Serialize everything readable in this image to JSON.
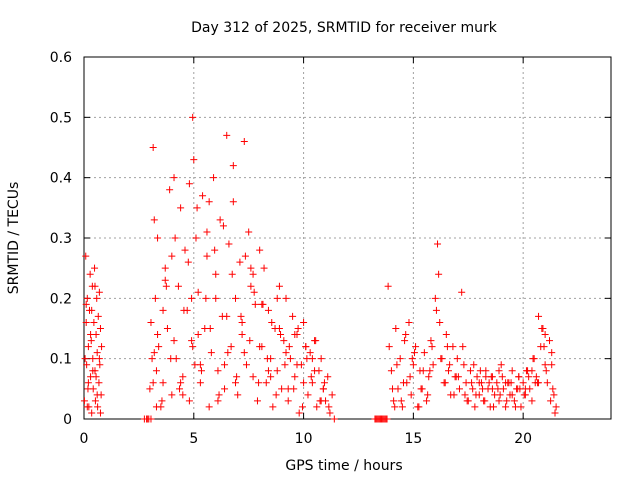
{
  "chart_data": {
    "type": "scatter",
    "title": "Day 312 of 2025, SRMTID for receiver murk",
    "xlabel": "GPS time / hours",
    "ylabel": "SRMTID / TECUs",
    "xlim": [
      0,
      24
    ],
    "ylim": [
      0,
      0.6
    ],
    "x_ticks": [
      0,
      5,
      10,
      15,
      20
    ],
    "y_ticks": [
      0,
      0.1,
      0.2,
      0.3,
      0.4,
      0.5,
      0.6
    ],
    "x_tick_labels": [
      "0",
      "5",
      "10",
      "15",
      "20"
    ],
    "y_tick_labels": [
      "0",
      "0.1",
      "0.2",
      "0.3",
      "0.4",
      "0.5",
      "0.6"
    ],
    "grid": true,
    "marker": "+",
    "color": "#ff0000",
    "series": [
      {
        "x": [
          0.02,
          0.05,
          0.08,
          0.1,
          0.12,
          0.15,
          0.18,
          0.2,
          0.22,
          0.25,
          0.28,
          0.3,
          0.33,
          0.35,
          0.38,
          0.4,
          0.42,
          0.45,
          0.48,
          0.5,
          0.52,
          0.55,
          0.58,
          0.6,
          0.62,
          0.65,
          0.68,
          0.7,
          0.72,
          0.75,
          0.78,
          0.8,
          0.1,
          0.2,
          0.3,
          0.4,
          0.5,
          0.6,
          0.7,
          0.15,
          0.35,
          0.55,
          0.75,
          2.9,
          3.0,
          3.05,
          3.1,
          3.15,
          3.2,
          3.25,
          3.3,
          3.35,
          3.4,
          3.5,
          3.6,
          3.7,
          3.8,
          3.9,
          4.0,
          4.1,
          4.2,
          4.3,
          4.4,
          4.5,
          4.6,
          4.7,
          4.8,
          4.9,
          4.95,
          5.0,
          5.05,
          5.1,
          5.2,
          5.3,
          5.4,
          5.5,
          5.6,
          5.7,
          5.8,
          5.9,
          6.0,
          6.1,
          6.2,
          6.3,
          6.4,
          6.5,
          6.6,
          6.7,
          6.8,
          6.9,
          7.0,
          7.1,
          7.2,
          7.3,
          7.4,
          7.5,
          7.6,
          7.7,
          7.8,
          7.9,
          8.0,
          8.1,
          8.2,
          8.3,
          8.4,
          8.5,
          8.6,
          8.7,
          8.8,
          8.9,
          9.0,
          9.1,
          9.2,
          9.3,
          9.4,
          9.5,
          9.6,
          9.7,
          9.8,
          9.9,
          10.0,
          10.1,
          10.2,
          10.3,
          10.4,
          10.5,
          10.6,
          10.7,
          10.8,
          10.9,
          11.0,
          11.1,
          11.2,
          11.3,
          11.4,
          3.15,
          3.35,
          3.55,
          3.75,
          3.95,
          4.15,
          4.35,
          4.55,
          4.75,
          4.95,
          5.15,
          5.35,
          5.55,
          5.75,
          5.95,
          6.15,
          6.35,
          6.55,
          6.75,
          6.95,
          7.15,
          7.35,
          7.55,
          7.75,
          7.95,
          8.15,
          8.35,
          8.55,
          8.75,
          8.95,
          9.15,
          9.35,
          9.55,
          9.75,
          9.95,
          10.15,
          10.35,
          10.55,
          10.75,
          10.95,
          11.15,
          3.2,
          3.6,
          4.0,
          4.4,
          4.8,
          5.2,
          5.6,
          6.0,
          6.4,
          6.8,
          7.2,
          7.6,
          8.0,
          8.4,
          8.8,
          9.2,
          9.6,
          10.0,
          10.4,
          10.8,
          3.3,
          3.7,
          4.1,
          4.5,
          4.9,
          5.3,
          5.7,
          6.1,
          6.5,
          6.9,
          7.3,
          7.7,
          8.1,
          8.5,
          8.9,
          9.3,
          9.7,
          10.1,
          10.5,
          10.9,
          13.3,
          13.4,
          13.5,
          13.6,
          13.7,
          13.8,
          13.85,
          13.9,
          14.0,
          14.1,
          14.2,
          14.3,
          14.4,
          14.5,
          14.6,
          14.7,
          14.8,
          14.9,
          15.0,
          15.1,
          15.2,
          15.3,
          15.4,
          15.5,
          15.6,
          15.7,
          15.8,
          15.9,
          16.0,
          16.1,
          16.2,
          16.3,
          16.4,
          16.5,
          16.6,
          16.7,
          16.8,
          16.9,
          17.0,
          17.1,
          17.2,
          17.3,
          17.4,
          17.5,
          17.6,
          17.7,
          17.8,
          17.9,
          18.0,
          18.1,
          18.2,
          18.3,
          18.4,
          18.5,
          18.6,
          18.7,
          18.8,
          18.9,
          19.0,
          19.1,
          19.2,
          19.3,
          19.4,
          19.5,
          19.6,
          19.7,
          19.8,
          19.9,
          20.0,
          20.1,
          20.2,
          20.3,
          20.4,
          20.5,
          20.6,
          20.7,
          20.8,
          20.9,
          21.0,
          21.1,
          21.2,
          21.3,
          21.4,
          21.5,
          14.05,
          14.25,
          14.45,
          14.65,
          14.85,
          15.05,
          15.25,
          15.45,
          15.65,
          15.85,
          16.05,
          16.25,
          16.45,
          16.65,
          16.85,
          17.05,
          17.25,
          17.45,
          17.65,
          17.85,
          18.05,
          18.25,
          18.45,
          18.65,
          18.85,
          19.05,
          19.25,
          19.45,
          19.65,
          19.85,
          20.05,
          20.25,
          20.45,
          20.65,
          20.85,
          21.05,
          21.25,
          21.45,
          14.15,
          14.55,
          14.95,
          15.35,
          15.75,
          16.15,
          16.55,
          16.95,
          17.35,
          17.75,
          18.15,
          18.55,
          18.95,
          19.35,
          19.75,
          20.15,
          20.55,
          20.95,
          21.35,
          18.0,
          18.3,
          18.6,
          18.9,
          19.2,
          19.5,
          19.8,
          20.1,
          20.4,
          20.7,
          21.0,
          21.3,
          2.75,
          2.85,
          2.95,
          3.05,
          13.25,
          13.35,
          13.45,
          13.55,
          13.65,
          13.75
        ],
        "y": [
          0.03,
          0.1,
          0.27,
          0.16,
          0.09,
          0.2,
          0.05,
          0.12,
          0.02,
          0.18,
          0.24,
          0.07,
          0.13,
          0.01,
          0.22,
          0.1,
          0.05,
          0.16,
          0.25,
          0.08,
          0.03,
          0.14,
          0.2,
          0.11,
          0.02,
          0.17,
          0.06,
          0.21,
          0.09,
          0.15,
          0.04,
          0.12,
          0.19,
          0.06,
          0.14,
          0.08,
          0.22,
          0.04,
          0.1,
          0.02,
          0.18,
          0.07,
          0.01,
          0.0,
          0.05,
          0.16,
          0.1,
          0.45,
          0.33,
          0.2,
          0.08,
          0.3,
          0.12,
          0.02,
          0.06,
          0.25,
          0.15,
          0.38,
          0.04,
          0.4,
          0.1,
          0.22,
          0.35,
          0.07,
          0.28,
          0.18,
          0.03,
          0.13,
          0.5,
          0.43,
          0.09,
          0.3,
          0.21,
          0.06,
          0.37,
          0.15,
          0.27,
          0.02,
          0.11,
          0.4,
          0.24,
          0.08,
          0.33,
          0.17,
          0.05,
          0.47,
          0.29,
          0.12,
          0.36,
          0.2,
          0.04,
          0.26,
          0.14,
          0.46,
          0.09,
          0.31,
          0.22,
          0.07,
          0.19,
          0.03,
          0.28,
          0.12,
          0.25,
          0.06,
          0.18,
          0.1,
          0.02,
          0.15,
          0.08,
          0.22,
          0.05,
          0.13,
          0.2,
          0.03,
          0.1,
          0.17,
          0.07,
          0.14,
          0.01,
          0.09,
          0.16,
          0.12,
          0.04,
          0.11,
          0.06,
          0.13,
          0.02,
          0.08,
          0.1,
          0.05,
          0.03,
          0.07,
          0.01,
          0.04,
          0.0,
          0.06,
          0.14,
          0.03,
          0.22,
          0.1,
          0.3,
          0.05,
          0.18,
          0.26,
          0.12,
          0.35,
          0.08,
          0.2,
          0.15,
          0.28,
          0.04,
          0.32,
          0.11,
          0.24,
          0.07,
          0.17,
          0.27,
          0.13,
          0.21,
          0.06,
          0.19,
          0.1,
          0.16,
          0.04,
          0.14,
          0.09,
          0.12,
          0.05,
          0.15,
          0.02,
          0.1,
          0.07,
          0.13,
          0.03,
          0.06,
          0.02,
          0.11,
          0.18,
          0.27,
          0.06,
          0.39,
          0.14,
          0.31,
          0.2,
          0.09,
          0.42,
          0.16,
          0.25,
          0.12,
          0.08,
          0.2,
          0.11,
          0.14,
          0.06,
          0.1,
          0.03,
          0.02,
          0.23,
          0.13,
          0.04,
          0.2,
          0.09,
          0.36,
          0.03,
          0.17,
          0.06,
          0.11,
          0.24,
          0.19,
          0.07,
          0.15,
          0.05,
          0.09,
          0.12,
          0.08,
          0.05,
          0.0,
          0.0,
          0.0,
          0.0,
          0.0,
          0.0,
          0.22,
          0.12,
          0.08,
          0.03,
          0.15,
          0.05,
          0.1,
          0.02,
          0.13,
          0.06,
          0.16,
          0.04,
          0.09,
          0.12,
          0.02,
          0.08,
          0.05,
          0.11,
          0.03,
          0.07,
          0.13,
          0.09,
          0.2,
          0.29,
          0.16,
          0.1,
          0.06,
          0.14,
          0.08,
          0.04,
          0.12,
          0.07,
          0.1,
          0.05,
          0.21,
          0.09,
          0.06,
          0.03,
          0.08,
          0.05,
          0.02,
          0.07,
          0.04,
          0.06,
          0.03,
          0.08,
          0.05,
          0.02,
          0.07,
          0.04,
          0.06,
          0.03,
          0.09,
          0.05,
          0.02,
          0.06,
          0.04,
          0.08,
          0.03,
          0.05,
          0.07,
          0.02,
          0.06,
          0.04,
          0.08,
          0.05,
          0.03,
          0.1,
          0.07,
          0.17,
          0.12,
          0.15,
          0.09,
          0.06,
          0.13,
          0.11,
          0.04,
          0.02,
          0.05,
          0.09,
          0.03,
          0.14,
          0.07,
          0.11,
          0.02,
          0.08,
          0.04,
          0.12,
          0.18,
          0.1,
          0.06,
          0.09,
          0.04,
          0.07,
          0.12,
          0.03,
          0.06,
          0.04,
          0.08,
          0.03,
          0.06,
          0.02,
          0.05,
          0.07,
          0.03,
          0.06,
          0.02,
          0.05,
          0.04,
          0.07,
          0.1,
          0.06,
          0.15,
          0.08,
          0.03,
          0.01,
          0.02,
          0.06,
          0.1,
          0.05,
          0.08,
          0.24,
          0.12,
          0.07,
          0.04,
          0.09,
          0.05,
          0.07,
          0.04,
          0.06,
          0.05,
          0.08,
          0.06,
          0.12,
          0.05,
          0.06,
          0.07,
          0.05,
          0.08,
          0.06,
          0.04,
          0.07,
          0.05,
          0.08,
          0.06,
          0.14,
          0.09,
          0.0,
          0.0,
          0.0,
          0.0,
          0.0,
          0.0,
          0.0,
          0.0,
          0.0,
          0.0
        ]
      }
    ]
  }
}
